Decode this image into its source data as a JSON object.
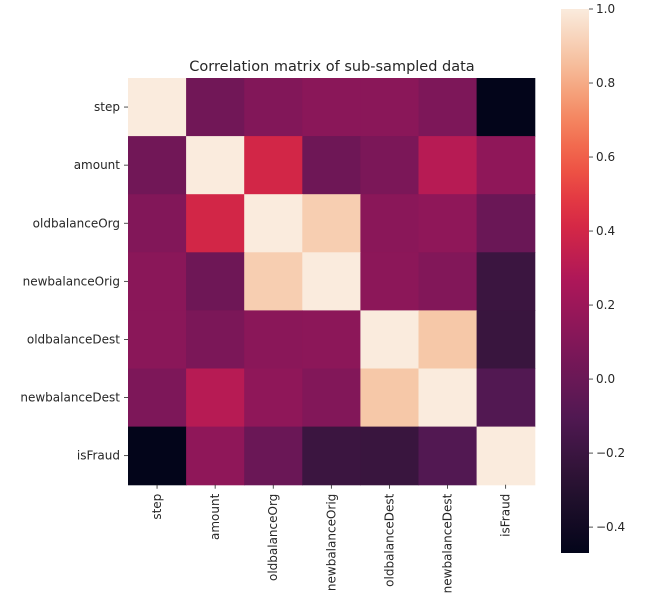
{
  "chart_data": {
    "type": "heatmap",
    "title": "Correlation matrix of sub-sampled data",
    "xlabel": "",
    "ylabel": "",
    "categories": [
      "step",
      "amount",
      "oldbalanceOrg",
      "newbalanceOrig",
      "oldbalanceDest",
      "newbalanceDest",
      "isFraud"
    ],
    "matrix": [
      [
        1.0,
        0.03,
        0.1,
        0.13,
        0.13,
        0.08,
        -0.47
      ],
      [
        0.03,
        1.0,
        0.4,
        0.02,
        0.07,
        0.3,
        0.15
      ],
      [
        0.1,
        0.4,
        1.0,
        0.9,
        0.13,
        0.15,
        0.0
      ],
      [
        0.13,
        0.02,
        0.9,
        1.0,
        0.14,
        0.1,
        -0.2
      ],
      [
        0.13,
        0.07,
        0.13,
        0.14,
        1.0,
        0.88,
        -0.21
      ],
      [
        0.08,
        0.3,
        0.15,
        0.1,
        0.88,
        1.0,
        -0.1
      ],
      [
        -0.47,
        0.15,
        0.0,
        -0.2,
        -0.21,
        -0.1,
        1.0
      ]
    ],
    "colorbar": {
      "vmin": -0.47,
      "vmax": 1.0,
      "ticks": [
        "1.0",
        "0.8",
        "0.6",
        "0.4",
        "0.2",
        "0.0",
        "−0.2",
        "−0.4"
      ],
      "tick_values": [
        1.0,
        0.8,
        0.6,
        0.4,
        0.2,
        0.0,
        -0.2,
        -0.4
      ]
    },
    "colormap": "rocket",
    "grid": false
  }
}
